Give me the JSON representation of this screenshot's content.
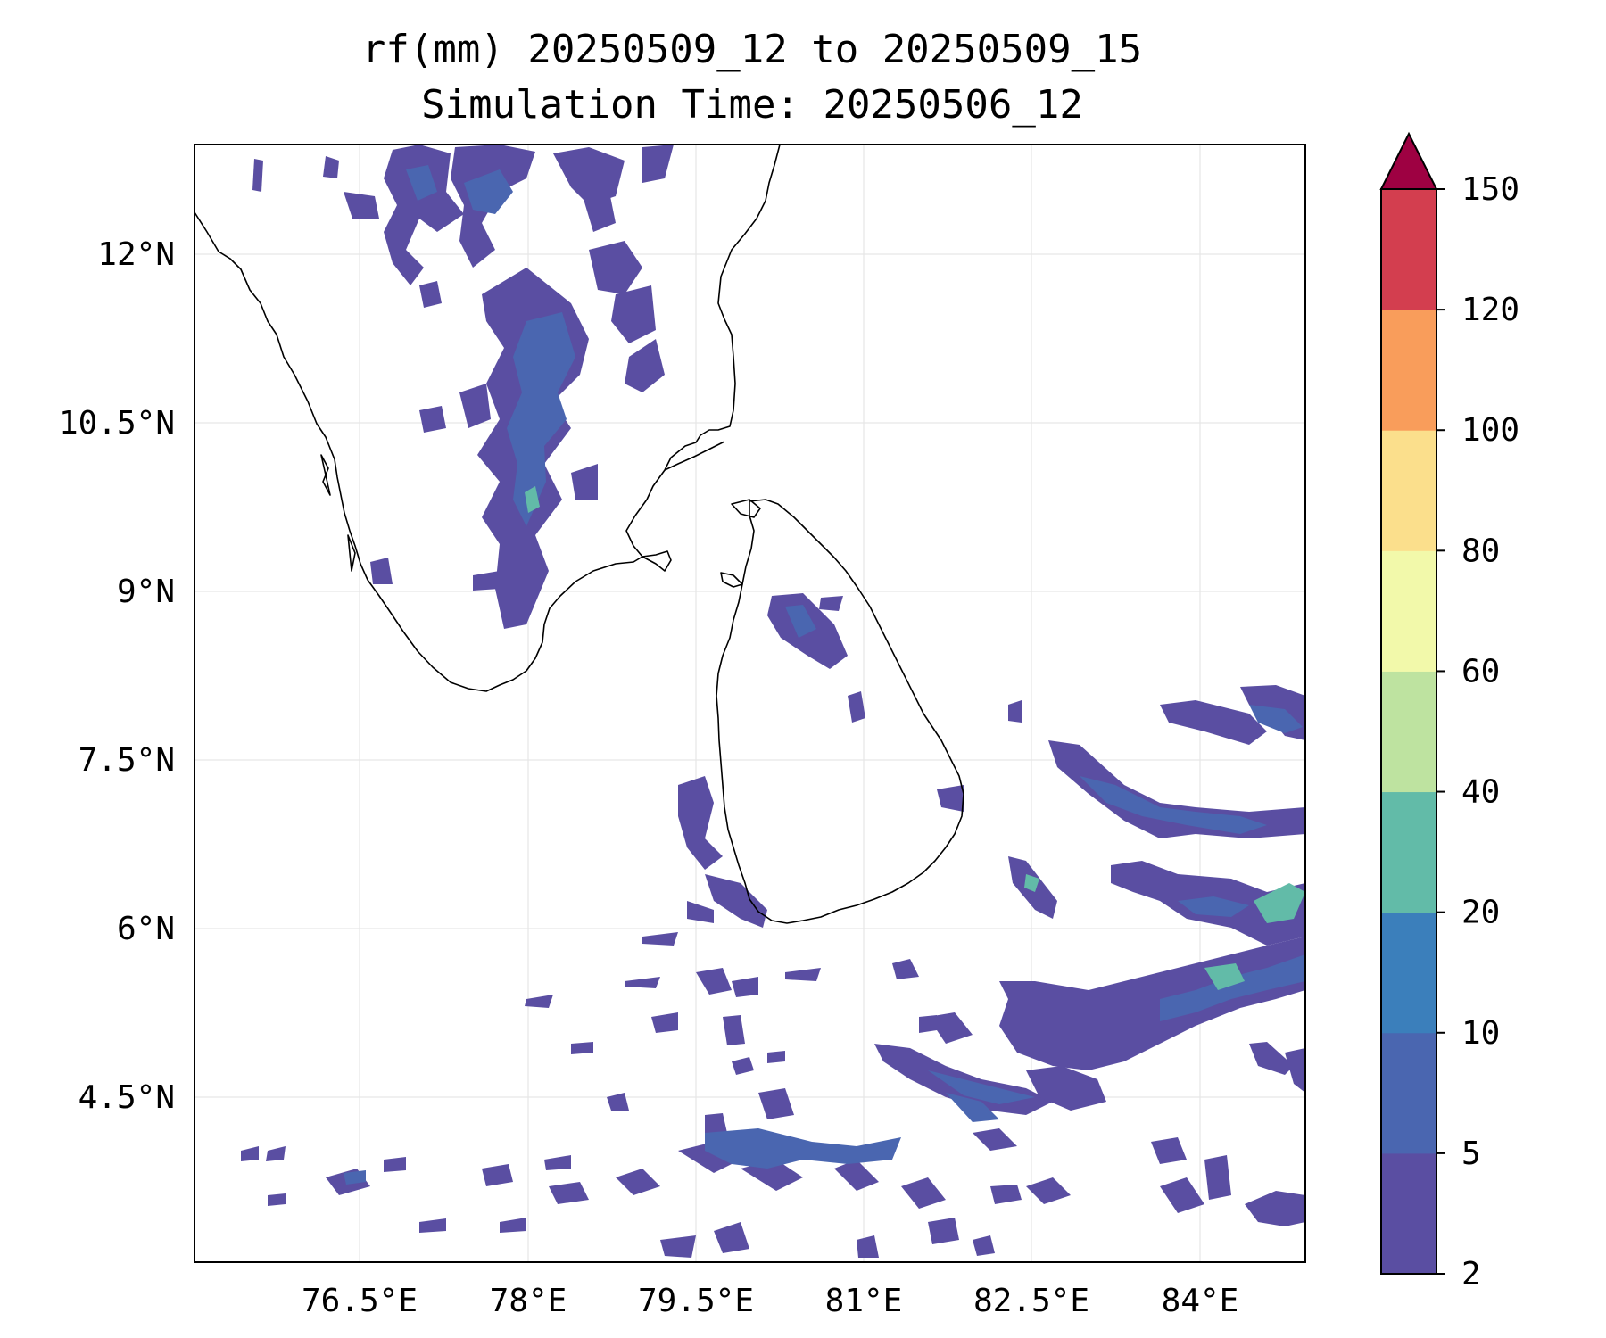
{
  "title_line1": "rf(mm) 20250509_12 to 20250509_15",
  "title_line2": "Simulation Time: 20250506_12",
  "map": {
    "lon_ticks": [
      "76.5°E",
      "78°E",
      "79.5°E",
      "81°E",
      "82.5°E",
      "84°E"
    ],
    "lat_ticks": [
      "12°N",
      "10.5°N",
      "9°N",
      "7.5°N",
      "6°N",
      "4.5°N"
    ],
    "gridlines": true
  },
  "colorbar": {
    "levels": [
      "2",
      "5",
      "10",
      "20",
      "40",
      "60",
      "80",
      "100",
      "120",
      "150"
    ],
    "colors": [
      "#5a4ea2",
      "#4a66b0",
      "#3b7fbb",
      "#62bba8",
      "#bee3a0",
      "#f2f9aa",
      "#fbdf8c",
      "#f99d5b",
      "#d33e4f"
    ],
    "extend_color": "#9e0142",
    "extend": "max"
  }
}
